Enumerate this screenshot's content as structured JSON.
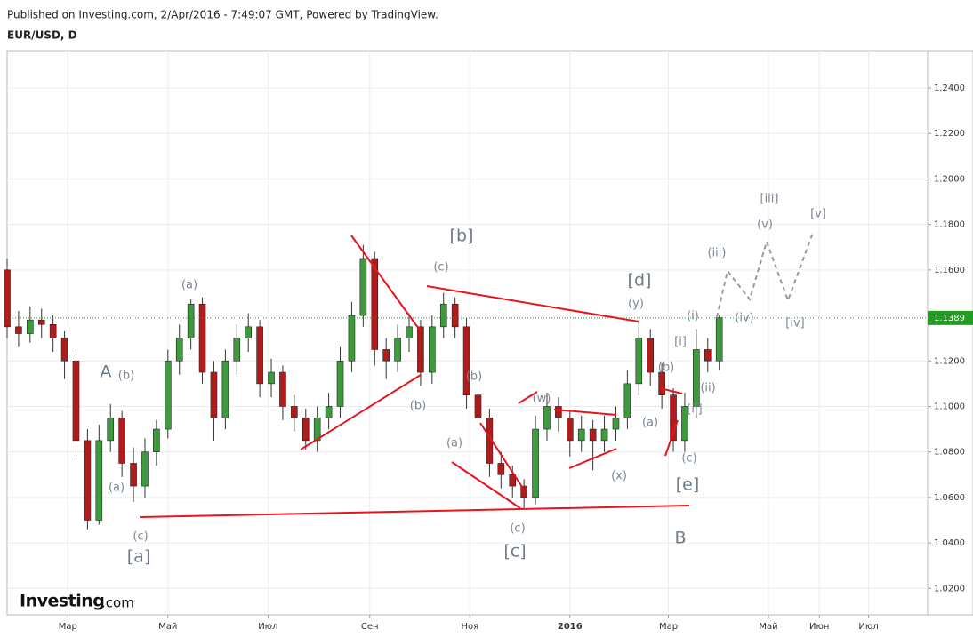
{
  "header": {
    "published": "Published on Investing.com, 2/Apr/2016 - 7:49:07 GMT, Powered by TradingView.",
    "symbol": "EUR/USD, D"
  },
  "logo": {
    "name": "Investing",
    "suffix": ".com"
  },
  "chart_data": {
    "type": "candlestick",
    "up_color": "#3d9a3d",
    "down_color": "#b01c1c",
    "x": [
      22,
      29,
      36,
      43,
      50,
      57,
      64,
      71,
      78,
      85,
      92,
      99,
      106,
      113,
      120,
      127,
      134,
      141,
      148,
      155,
      162,
      169,
      176,
      183,
      190,
      197,
      204,
      211,
      218,
      225,
      232,
      239,
      246,
      253,
      260,
      267,
      274,
      281,
      288,
      295,
      302,
      309,
      316,
      323,
      330,
      337,
      344,
      351,
      358,
      365,
      372,
      379,
      386,
      393,
      400,
      407,
      414,
      421,
      428,
      435,
      442,
      449,
      456
    ],
    "open": [
      1.16,
      1.135,
      1.132,
      1.138,
      1.136,
      1.13,
      1.12,
      1.085,
      1.05,
      1.085,
      1.095,
      1.075,
      1.065,
      1.08,
      1.09,
      1.12,
      1.13,
      1.145,
      1.115,
      1.095,
      1.12,
      1.13,
      1.135,
      1.11,
      1.115,
      1.1,
      1.095,
      1.085,
      1.095,
      1.1,
      1.12,
      1.14,
      1.165,
      1.125,
      1.12,
      1.13,
      1.135,
      1.115,
      1.135,
      1.145,
      1.135,
      1.105,
      1.095,
      1.075,
      1.07,
      1.065,
      1.06,
      1.09,
      1.1,
      1.095,
      1.085,
      1.09,
      1.085,
      1.09,
      1.095,
      1.11,
      1.13,
      1.115,
      1.105,
      1.085,
      1.1,
      1.125,
      1.12
    ],
    "high": [
      1.165,
      1.142,
      1.144,
      1.143,
      1.14,
      1.133,
      1.124,
      1.09,
      1.092,
      1.101,
      1.098,
      1.082,
      1.086,
      1.094,
      1.125,
      1.136,
      1.147,
      1.148,
      1.12,
      1.125,
      1.136,
      1.141,
      1.138,
      1.121,
      1.118,
      1.105,
      1.099,
      1.1,
      1.106,
      1.126,
      1.146,
      1.171,
      1.168,
      1.13,
      1.136,
      1.141,
      1.138,
      1.14,
      1.15,
      1.148,
      1.139,
      1.11,
      1.099,
      1.08,
      1.074,
      1.068,
      1.096,
      1.106,
      1.104,
      1.098,
      1.096,
      1.094,
      1.096,
      1.1,
      1.116,
      1.137,
      1.134,
      1.119,
      1.108,
      1.106,
      1.134,
      1.13,
      1.14
    ],
    "low": [
      1.13,
      1.126,
      1.128,
      1.13,
      1.124,
      1.112,
      1.078,
      1.046,
      1.048,
      1.08,
      1.069,
      1.058,
      1.06,
      1.074,
      1.086,
      1.114,
      1.125,
      1.11,
      1.085,
      1.09,
      1.114,
      1.124,
      1.104,
      1.104,
      1.094,
      1.089,
      1.081,
      1.08,
      1.09,
      1.095,
      1.115,
      1.135,
      1.118,
      1.112,
      1.115,
      1.124,
      1.109,
      1.11,
      1.13,
      1.13,
      1.099,
      1.089,
      1.069,
      1.064,
      1.06,
      1.055,
      1.057,
      1.085,
      1.089,
      1.078,
      1.08,
      1.072,
      1.08,
      1.085,
      1.09,
      1.105,
      1.109,
      1.099,
      1.08,
      1.08,
      1.095,
      1.115,
      1.116
    ],
    "close": [
      1.135,
      1.132,
      1.138,
      1.136,
      1.13,
      1.12,
      1.085,
      1.05,
      1.085,
      1.095,
      1.075,
      1.065,
      1.08,
      1.09,
      1.12,
      1.13,
      1.145,
      1.115,
      1.095,
      1.12,
      1.13,
      1.135,
      1.11,
      1.115,
      1.1,
      1.095,
      1.085,
      1.095,
      1.1,
      1.12,
      1.14,
      1.165,
      1.125,
      1.12,
      1.13,
      1.135,
      1.115,
      1.135,
      1.145,
      1.135,
      1.105,
      1.095,
      1.075,
      1.07,
      1.065,
      1.06,
      1.09,
      1.1,
      1.095,
      1.085,
      1.09,
      1.085,
      1.09,
      1.095,
      1.11,
      1.13,
      1.115,
      1.105,
      1.085,
      1.1,
      1.125,
      1.12,
      1.139
    ],
    "xlim": [
      22,
      583
    ],
    "ylim": [
      1.0084,
      1.2564
    ],
    "yticks": [
      {
        "value": 1.02,
        "label": "1.0200"
      },
      {
        "value": 1.04,
        "label": "1.0400"
      },
      {
        "value": 1.06,
        "label": "1.0600"
      },
      {
        "value": 1.08,
        "label": "1.0800"
      },
      {
        "value": 1.1,
        "label": "1.1000"
      },
      {
        "value": 1.12,
        "label": "1.1200"
      },
      {
        "value": 1.14,
        "label": "1.1400"
      },
      {
        "value": 1.16,
        "label": "1.1600"
      },
      {
        "value": 1.18,
        "label": "1.1800"
      },
      {
        "value": 1.2,
        "label": "1.2000"
      },
      {
        "value": 1.22,
        "label": "1.2200"
      },
      {
        "value": 1.24,
        "label": "1.2400"
      }
    ],
    "xticks": [
      {
        "value": 59,
        "label": "Мар"
      },
      {
        "value": 120,
        "label": "Май"
      },
      {
        "value": 181,
        "label": "Июл"
      },
      {
        "value": 243,
        "label": "Сен"
      },
      {
        "value": 304,
        "label": "Ноя"
      },
      {
        "value": 365,
        "label": "2016"
      },
      {
        "value": 425,
        "label": "Мар"
      },
      {
        "value": 486,
        "label": "Май"
      },
      {
        "value": 517,
        "label": "Июн"
      },
      {
        "value": 547,
        "label": "Июл"
      }
    ],
    "grid": true,
    "last_price": 1.1389,
    "last_price_color": "#1f9e1f",
    "annotations": [
      "A",
      "(b)",
      "(a)",
      "(c)",
      "[a]",
      "(a)",
      "(b)",
      "(c)",
      "[b]",
      "(b)",
      "(a)",
      "(c)",
      "[c]",
      "(w)",
      "(x)",
      "(y)",
      "[d]",
      "(b)",
      "(a)",
      "(c)",
      "[e]",
      "B",
      "(i)",
      "[i]",
      "[ii]",
      "(ii)",
      "(iii)",
      "(iv)",
      "(v)",
      "[iii]",
      "[iv]",
      "[v]"
    ]
  }
}
